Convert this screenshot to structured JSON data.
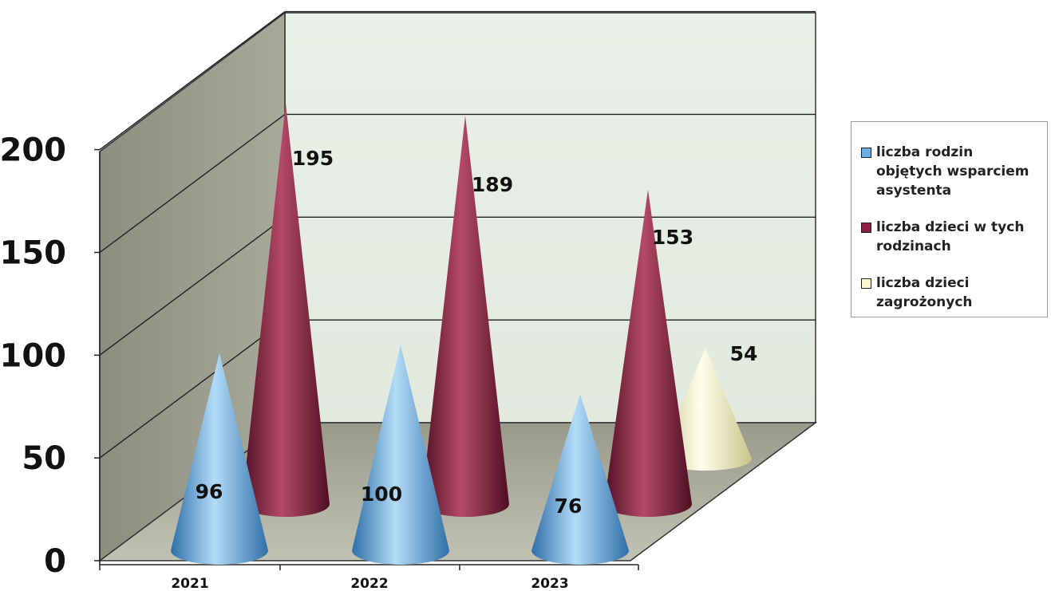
{
  "chart_data": {
    "type": "bar",
    "shape": "3d-cone",
    "categories": [
      "2021",
      "2022",
      "2023"
    ],
    "series": [
      {
        "name": "liczba rodzin objętych wsparciem asystenta",
        "color": "#6aaee2",
        "values": [
          96,
          100,
          76
        ]
      },
      {
        "name": "liczba dzieci w tych rodzinach",
        "color": "#8e2043",
        "values": [
          195,
          189,
          153
        ]
      },
      {
        "name": "liczba dzieci zagrożonych",
        "color": "#fbf8cf",
        "values": [
          null,
          null,
          54
        ]
      }
    ],
    "yticks": [
      "0",
      "50",
      "100",
      "150",
      "200"
    ],
    "ylim": [
      0,
      200
    ],
    "grid": true,
    "legend_position": "right"
  },
  "legend": {
    "items": [
      {
        "label": "liczba rodzin objętych wsparciem asystenta",
        "color": "#6aaee2"
      },
      {
        "label": "liczba dzieci w tych rodzinach",
        "color": "#8e2043"
      },
      {
        "label": "liczba dzieci zagrożonych",
        "color": "#fbf8cf"
      }
    ]
  }
}
